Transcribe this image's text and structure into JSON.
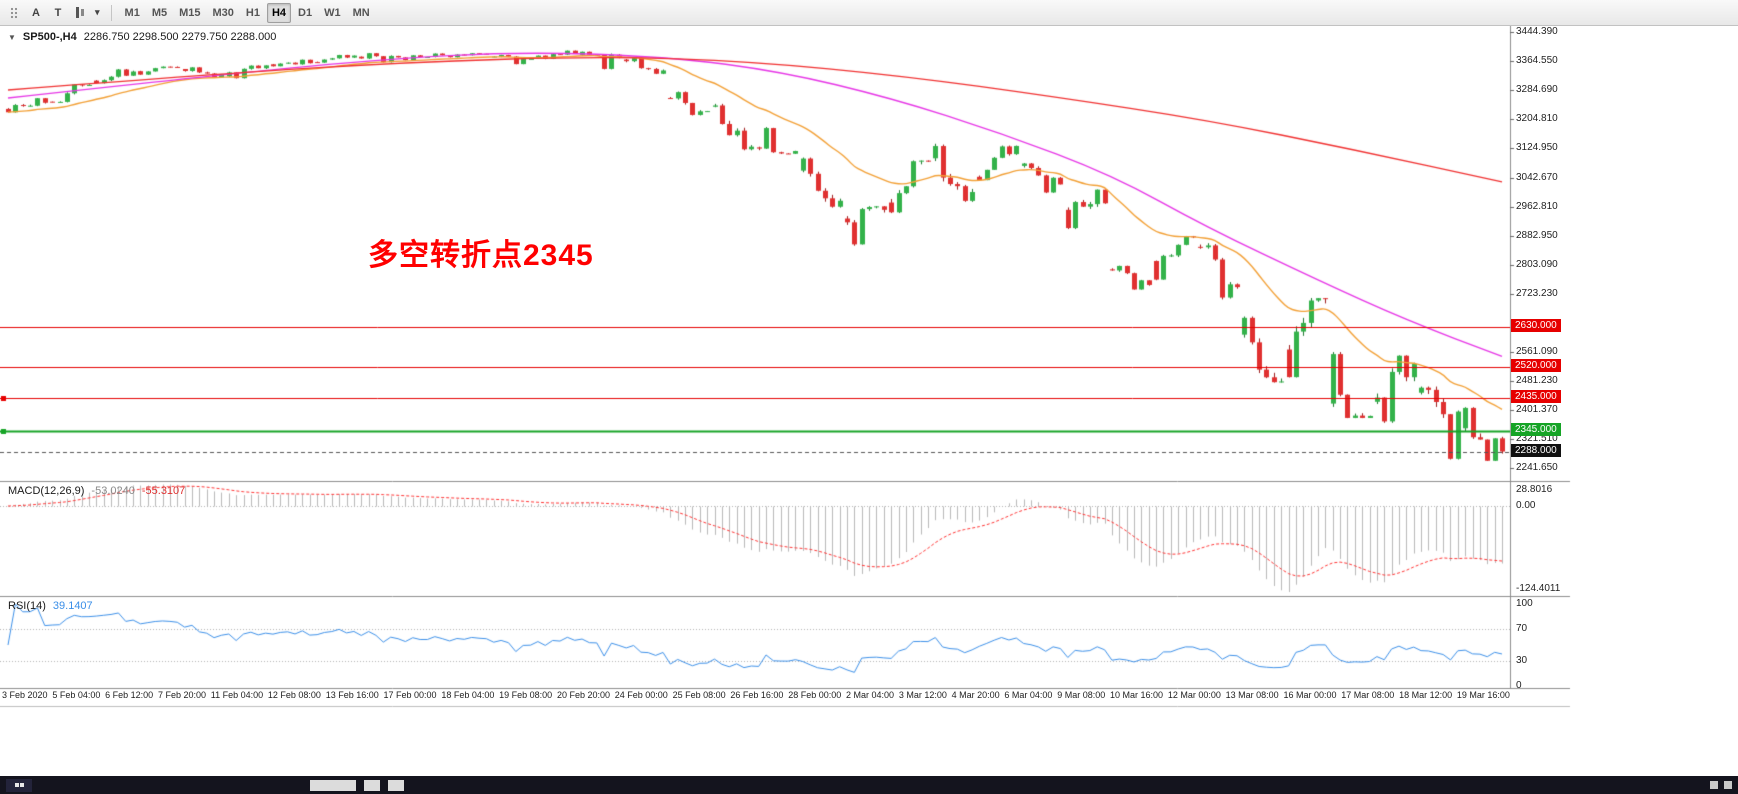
{
  "window": {
    "toolbar": {
      "tools": [
        {
          "id": "grip",
          "label": ""
        },
        {
          "id": "pointer",
          "label": "A"
        },
        {
          "id": "text",
          "label": "T"
        },
        {
          "id": "chart-type",
          "label": ""
        },
        {
          "id": "caret",
          "label": "▾"
        }
      ],
      "timeframes": [
        {
          "label": "M1",
          "active": false
        },
        {
          "label": "M5",
          "active": false
        },
        {
          "label": "M15",
          "active": false
        },
        {
          "label": "M30",
          "active": false
        },
        {
          "label": "H1",
          "active": false
        },
        {
          "label": "H4",
          "active": true
        },
        {
          "label": "D1",
          "active": false
        },
        {
          "label": "W1",
          "active": false
        },
        {
          "label": "MN",
          "active": false
        }
      ]
    }
  },
  "chart": {
    "collapse_icon": "▼",
    "title": "SP500-,H4",
    "ohlc": "2286.750 2298.500 2279.750 2288.000",
    "annotation": {
      "text": "多空转折点2345",
      "color": "#ff0000"
    },
    "price_axis": {
      "labels": [
        {
          "text": "3444.390",
          "price": 3444.39
        },
        {
          "text": "3364.550",
          "price": 3364.55
        },
        {
          "text": "3284.690",
          "price": 3284.69
        },
        {
          "text": "3204.810",
          "price": 3204.81
        },
        {
          "text": "3124.950",
          "price": 3124.95
        },
        {
          "text": "3042.670",
          "price": 3042.67
        },
        {
          "text": "2962.810",
          "price": 2962.81
        },
        {
          "text": "2882.950",
          "price": 2882.95
        },
        {
          "text": "2803.090",
          "price": 2803.09
        },
        {
          "text": "2723.230",
          "price": 2723.23
        },
        {
          "text": "2561.090",
          "price": 2561.09
        },
        {
          "text": "2481.230",
          "price": 2481.23
        },
        {
          "text": "2401.370",
          "price": 2401.37
        },
        {
          "text": "2321.510",
          "price": 2321.51
        },
        {
          "text": "2241.650",
          "price": 2241.65
        }
      ],
      "badges": [
        {
          "text": "2630.000",
          "price": 2630,
          "color": "#e60000"
        },
        {
          "text": "2520.000",
          "price": 2520,
          "color": "#e60000"
        },
        {
          "text": "2435.000",
          "price": 2435,
          "color": "#e60000"
        },
        {
          "text": "2345.000",
          "price": 2345,
          "color": "#16a426"
        },
        {
          "text": "2288.000",
          "price": 2288,
          "color": "#111111"
        }
      ]
    },
    "indicators": {
      "macd": {
        "name": "MACD(12,26,9)",
        "main_value": "-53.0240",
        "signal_value": "-55.3107",
        "axis": [
          "28.8016",
          "0.00",
          "-124.4011"
        ]
      },
      "rsi": {
        "name": "RSI(14)",
        "value": "39.1407",
        "axis": [
          "100",
          "70",
          "30",
          "0"
        ]
      }
    },
    "time_axis": {
      "labels": [
        "3 Feb 2020",
        "5 Feb 04:00",
        "6 Feb 12:00",
        "7 Feb 20:00",
        "11 Feb 04:00",
        "12 Feb 08:00",
        "13 Feb 16:00",
        "17 Feb 00:00",
        "18 Feb 04:00",
        "19 Feb 08:00",
        "20 Feb 20:00",
        "24 Feb 00:00",
        "25 Feb 08:00",
        "26 Feb 16:00",
        "28 Feb 00:00",
        "2 Mar 04:00",
        "3 Mar 12:00",
        "4 Mar 20:00",
        "6 Mar 04:00",
        "9 Mar 08:00",
        "10 Mar 16:00",
        "12 Mar 00:00",
        "13 Mar 08:00",
        "16 Mar 00:00",
        "17 Mar 08:00",
        "18 Mar 12:00",
        "19 Mar 16:00"
      ]
    }
  },
  "chart_data": {
    "type": "candlestick",
    "symbol": "SP500-",
    "timeframe": "H4",
    "bars_per_day": 6,
    "visible_price_range": [
      2215,
      3455
    ],
    "daily_ohlc": [
      [
        "3 Feb",
        3232,
        3262,
        3222,
        3249
      ],
      [
        "4 Feb",
        3252,
        3300,
        3250,
        3298
      ],
      [
        "5 Feb",
        3310,
        3342,
        3302,
        3335
      ],
      [
        "6 Feb",
        3336,
        3349,
        3326,
        3346
      ],
      [
        "7 Feb",
        3342,
        3347,
        3318,
        3328
      ],
      [
        "10 Feb",
        3322,
        3352,
        3316,
        3352
      ],
      [
        "11 Feb",
        3355,
        3368,
        3349,
        3358
      ],
      [
        "12 Feb",
        3361,
        3381,
        3359,
        3379
      ],
      [
        "13 Feb",
        3376,
        3386,
        3360,
        3374
      ],
      [
        "14 Feb",
        3374,
        3385,
        3366,
        3380
      ],
      [
        "17 Feb",
        3380,
        3386,
        3374,
        3383
      ],
      [
        "18 Feb",
        3376,
        3381,
        3355,
        3370
      ],
      [
        "19 Feb",
        3372,
        3393,
        3369,
        3386
      ],
      [
        "20 Feb",
        3381,
        3390,
        3341,
        3373
      ],
      [
        "21 Feb",
        3368,
        3373,
        3328,
        3338
      ],
      [
        "24 Feb",
        3262,
        3280,
        3214,
        3226
      ],
      [
        "25 Feb",
        3238,
        3246,
        3118,
        3128
      ],
      [
        "26 Feb",
        3126,
        3182,
        3108,
        3116
      ],
      [
        "27 Feb",
        3062,
        3098,
        2960,
        2979
      ],
      [
        "28 Feb",
        2930,
        2964,
        2855,
        2954
      ],
      [
        "2 Mar",
        2974,
        3090,
        2945,
        3088
      ],
      [
        "3 Mar",
        3096,
        3136,
        2976,
        3003
      ],
      [
        "4 Mar",
        3045,
        3131,
        3034,
        3130
      ],
      [
        "5 Mar",
        3075,
        3083,
        3000,
        3024
      ],
      [
        "6 Mar",
        2954,
        3010,
        2901,
        2972
      ],
      [
        "9 Mar",
        2790,
        2800,
        2734,
        2747
      ],
      [
        "10 Mar",
        2813,
        2882,
        2760,
        2880
      ],
      [
        "11 Mar",
        2852,
        2862,
        2707,
        2741
      ],
      [
        "12 Mar",
        2610,
        2660,
        2478,
        2481
      ],
      [
        "13 Mar",
        2569,
        2711,
        2492,
        2710
      ],
      [
        "16 Mar",
        2420,
        2562,
        2380,
        2386
      ],
      [
        "17 Mar",
        2425,
        2553,
        2367,
        2529
      ],
      [
        "18 Mar",
        2450,
        2467,
        2266,
        2398
      ],
      [
        "19 Mar",
        2352,
        2410,
        2262,
        2288
      ]
    ],
    "levels": [
      {
        "price": 2630,
        "color": "#e60000",
        "style": "solid",
        "width": 1,
        "marker": false
      },
      {
        "price": 2520,
        "color": "#e60000",
        "style": "solid",
        "width": 1,
        "marker": false
      },
      {
        "price": 2435,
        "color": "#e60000",
        "style": "solid",
        "width": 1,
        "marker": true
      },
      {
        "price": 2345,
        "color": "#16a426",
        "style": "solid",
        "width": 2,
        "marker": true
      },
      {
        "price": 2288,
        "color": "#555555",
        "style": "dash",
        "width": 1,
        "marker": false
      }
    ],
    "moving_averages": [
      {
        "name": "fast",
        "color": "#f2a036",
        "method": "ema",
        "period": 21
      },
      {
        "name": "medium",
        "color": "#e636e6",
        "points": [
          [
            0,
            3262
          ],
          [
            25,
            3318
          ],
          [
            50,
            3368
          ],
          [
            70,
            3390
          ],
          [
            90,
            3375
          ],
          [
            105,
            3335
          ],
          [
            120,
            3262
          ],
          [
            135,
            3165
          ],
          [
            150,
            3050
          ],
          [
            163,
            2905
          ],
          [
            178,
            2760
          ],
          [
            190,
            2650
          ],
          [
            203,
            2550
          ]
        ]
      },
      {
        "name": "slow",
        "color": "#f03030",
        "points": [
          [
            0,
            3284
          ],
          [
            26,
            3325
          ],
          [
            54,
            3361
          ],
          [
            81,
            3377
          ],
          [
            101,
            3363
          ],
          [
            122,
            3322
          ],
          [
            142,
            3266
          ],
          [
            163,
            3201
          ],
          [
            183,
            3119
          ],
          [
            203,
            3031
          ]
        ]
      }
    ],
    "colors": {
      "bull": "#33b24a",
      "bull_border": "#1e7a30",
      "bear": "#e03030",
      "bear_border": "#9e1f1f",
      "macd_hist": "#b8b8b8",
      "macd_signal": "#ff3333",
      "rsi_line": "#3b8fe8",
      "grid_dotted": "#b0b0b0"
    }
  }
}
